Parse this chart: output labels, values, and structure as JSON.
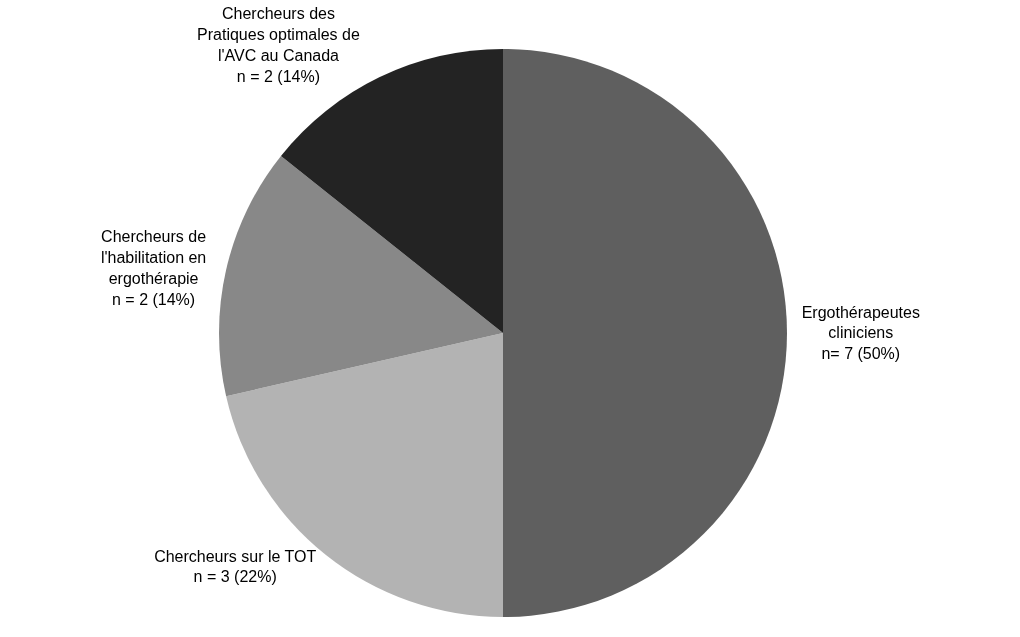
{
  "chart_data": {
    "type": "pie",
    "categories": [
      "Ergothérapeutes cliniciens",
      "Chercheurs sur le TOT",
      "Chercheurs de l'habilitation en ergothérapie",
      "Chercheurs des Pratiques optimales de l'AVC au Canada"
    ],
    "values": [
      7,
      3,
      2,
      2
    ],
    "value_labels": [
      "n= 7 (50%)",
      "n = 3 (22%)",
      "n = 2 (14%)",
      "n = 2 (14%)"
    ],
    "colors": [
      "#5f5f5f",
      "#b3b3b3",
      "#888888",
      "#232323"
    ],
    "legend": false
  }
}
